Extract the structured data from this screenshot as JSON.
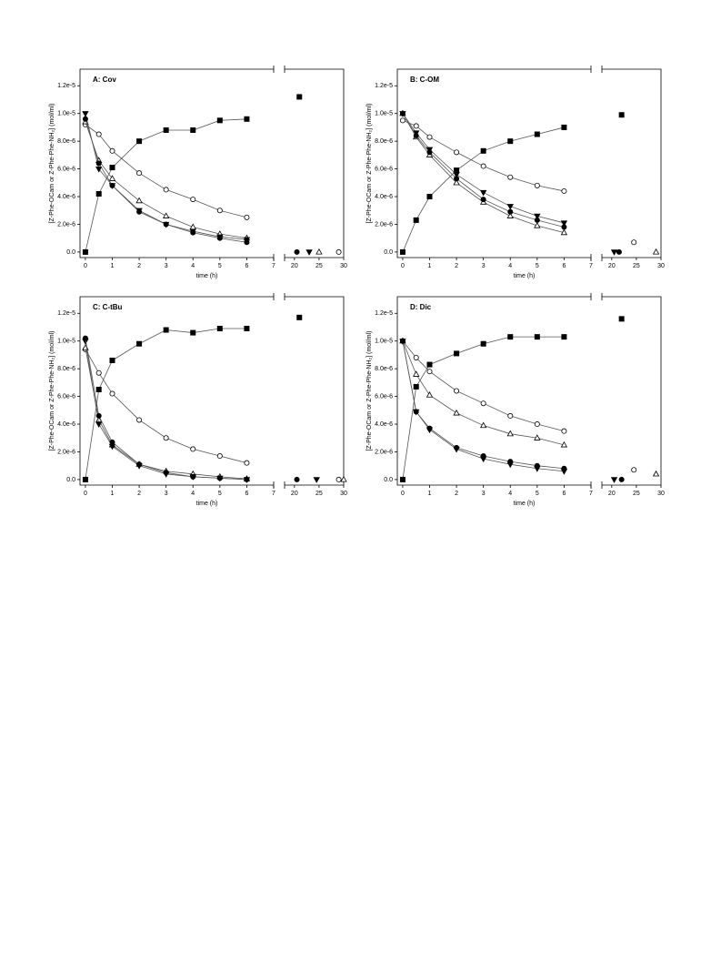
{
  "chart_data": [
    {
      "type": "line",
      "title": "A: Cov",
      "x_label": "time (h)",
      "y_label": "[Z-Phe-OCam or Z-Phe-Phe-NH₂] (mol/ml)",
      "ylim": [
        -4e-07,
        1.32e-05
      ],
      "yticks": [
        {
          "value": 0,
          "label": "0.0"
        },
        {
          "value": 2e-06,
          "label": "2.0e-6"
        },
        {
          "value": 4e-06,
          "label": "4.0e-6"
        },
        {
          "value": 6e-06,
          "label": "6.0e-6"
        },
        {
          "value": 8e-06,
          "label": "8.0e-6"
        },
        {
          "value": 1e-05,
          "label": "1.0e-5"
        },
        {
          "value": 1.2e-05,
          "label": "1.2e-5"
        }
      ],
      "x_segments": [
        {
          "xlim": [
            -0.2,
            7
          ],
          "xticks": [
            0,
            1,
            2,
            3,
            4,
            5,
            6,
            7
          ]
        },
        {
          "xlim": [
            18,
            30
          ],
          "xticks": [
            20,
            25,
            30
          ]
        }
      ],
      "series": [
        {
          "marker": "square",
          "filled": true,
          "color": "#000000",
          "x": [
            0,
            0.5,
            1,
            2,
            3,
            4,
            5,
            6,
            21
          ],
          "values": [
            0,
            4.2e-06,
            6.1e-06,
            8e-06,
            8.8e-06,
            8.8e-06,
            9.5e-06,
            9.6e-06,
            1.12e-05
          ]
        },
        {
          "marker": "circle",
          "filled": false,
          "color": "#000000",
          "x": [
            0,
            0.5,
            1,
            2,
            3,
            4,
            5,
            6,
            29
          ],
          "values": [
            9.2e-06,
            8.5e-06,
            7.3e-06,
            5.7e-06,
            4.5e-06,
            3.8e-06,
            3e-06,
            2.5e-06,
            0
          ]
        },
        {
          "marker": "triangle-up",
          "filled": false,
          "color": "#000000",
          "x": [
            0,
            0.5,
            1,
            2,
            3,
            4,
            5,
            6,
            25
          ],
          "values": [
            9.4e-06,
            6.6e-06,
            5.3e-06,
            3.7e-06,
            2.6e-06,
            1.8e-06,
            1.3e-06,
            1e-06,
            0
          ]
        },
        {
          "marker": "triangle-down",
          "filled": true,
          "color": "#000000",
          "x": [
            0,
            0.5,
            1,
            2,
            3,
            4,
            5,
            6,
            23
          ],
          "values": [
            1e-05,
            6e-06,
            4.8e-06,
            3e-06,
            2e-06,
            1.5e-06,
            1.1e-06,
            9e-07,
            0
          ]
        },
        {
          "marker": "circle",
          "filled": true,
          "color": "#000000",
          "x": [
            0,
            0.5,
            1,
            2,
            3,
            4,
            5,
            6,
            20.5
          ],
          "values": [
            9.6e-06,
            6.4e-06,
            4.8e-06,
            2.9e-06,
            2e-06,
            1.4e-06,
            1e-06,
            7e-07,
            0
          ]
        }
      ]
    },
    {
      "type": "line",
      "title": "B: C-OM",
      "x_label": "time (h)",
      "y_label": "[Z-Phe-OCam or Z-Phe-Phe-NH₂] (mol/ml)",
      "ylim": [
        -4e-07,
        1.32e-05
      ],
      "yticks": [
        {
          "value": 0,
          "label": "0.0"
        },
        {
          "value": 2e-06,
          "label": "2.0e-6"
        },
        {
          "value": 4e-06,
          "label": "4.0e-6"
        },
        {
          "value": 6e-06,
          "label": "6.0e-6"
        },
        {
          "value": 8e-06,
          "label": "8.0e-6"
        },
        {
          "value": 1e-05,
          "label": "1.0e-5"
        },
        {
          "value": 1.2e-05,
          "label": "1.2e-5"
        }
      ],
      "x_segments": [
        {
          "xlim": [
            -0.2,
            7
          ],
          "xticks": [
            0,
            1,
            2,
            3,
            4,
            5,
            6,
            7
          ]
        },
        {
          "xlim": [
            18,
            30
          ],
          "xticks": [
            20,
            25,
            30
          ]
        }
      ],
      "series": [
        {
          "marker": "square",
          "filled": true,
          "color": "#000000",
          "x": [
            0,
            0.5,
            1,
            2,
            3,
            4,
            5,
            6,
            22
          ],
          "values": [
            0,
            2.3e-06,
            4e-06,
            5.9e-06,
            7.3e-06,
            8e-06,
            8.5e-06,
            9e-06,
            9.9e-06
          ]
        },
        {
          "marker": "circle",
          "filled": false,
          "color": "#000000",
          "x": [
            0,
            0.5,
            1,
            2,
            3,
            4,
            5,
            6,
            24.5
          ],
          "values": [
            9.5e-06,
            9.1e-06,
            8.3e-06,
            7.2e-06,
            6.2e-06,
            5.4e-06,
            4.8e-06,
            4.4e-06,
            7e-07
          ]
        },
        {
          "marker": "triangle-up",
          "filled": false,
          "color": "#000000",
          "x": [
            0,
            0.5,
            1,
            2,
            3,
            4,
            5,
            6,
            29
          ],
          "values": [
            1e-05,
            8.3e-06,
            7e-06,
            5e-06,
            3.6e-06,
            2.6e-06,
            1.9e-06,
            1.4e-06,
            0
          ]
        },
        {
          "marker": "triangle-down",
          "filled": true,
          "color": "#000000",
          "x": [
            0,
            0.5,
            1,
            2,
            3,
            4,
            5,
            6,
            20.5
          ],
          "values": [
            1e-05,
            8.6e-06,
            7.4e-06,
            5.6e-06,
            4.3e-06,
            3.3e-06,
            2.6e-06,
            2.1e-06,
            0
          ]
        },
        {
          "marker": "circle",
          "filled": true,
          "color": "#000000",
          "x": [
            0,
            0.5,
            1,
            2,
            3,
            4,
            5,
            6,
            21.5
          ],
          "values": [
            1e-05,
            8.4e-06,
            7.2e-06,
            5.3e-06,
            3.8e-06,
            2.9e-06,
            2.3e-06,
            1.8e-06,
            0
          ]
        }
      ]
    },
    {
      "type": "line",
      "title": "C: C-tBu",
      "x_label": "time (h)",
      "y_label": "[Z-Phe-OCam or Z-Phe-Phe-NH₂] (mol/ml)",
      "ylim": [
        -4e-07,
        1.32e-05
      ],
      "yticks": [
        {
          "value": 0,
          "label": "0.0"
        },
        {
          "value": 2e-06,
          "label": "2.0e-6"
        },
        {
          "value": 4e-06,
          "label": "4.0e-6"
        },
        {
          "value": 6e-06,
          "label": "6.0e-6"
        },
        {
          "value": 8e-06,
          "label": "8.0e-6"
        },
        {
          "value": 1e-05,
          "label": "1.0e-5"
        },
        {
          "value": 1.2e-05,
          "label": "1.2e-5"
        }
      ],
      "x_segments": [
        {
          "xlim": [
            -0.2,
            7
          ],
          "xticks": [
            0,
            1,
            2,
            3,
            4,
            5,
            6,
            7
          ]
        },
        {
          "xlim": [
            18,
            30
          ],
          "xticks": [
            20,
            25,
            30
          ]
        }
      ],
      "series": [
        {
          "marker": "square",
          "filled": true,
          "color": "#000000",
          "x": [
            0,
            0.5,
            1,
            2,
            3,
            4,
            5,
            6,
            21
          ],
          "values": [
            0,
            6.5e-06,
            8.6e-06,
            9.8e-06,
            1.08e-05,
            1.06e-05,
            1.09e-05,
            1.09e-05,
            1.17e-05
          ]
        },
        {
          "marker": "circle",
          "filled": false,
          "color": "#000000",
          "x": [
            0,
            0.5,
            1,
            2,
            3,
            4,
            5,
            6,
            29
          ],
          "values": [
            9.4e-06,
            7.7e-06,
            6.2e-06,
            4.3e-06,
            3e-06,
            2.2e-06,
            1.7e-06,
            1.2e-06,
            0
          ]
        },
        {
          "marker": "triangle-up",
          "filled": false,
          "color": "#000000",
          "x": [
            0,
            0.5,
            1,
            2,
            3,
            4,
            5,
            6,
            30
          ],
          "values": [
            9.5e-06,
            4.3e-06,
            2.5e-06,
            1.1e-06,
            6e-07,
            4e-07,
            2e-07,
            5e-08,
            0
          ]
        },
        {
          "marker": "triangle-down",
          "filled": true,
          "color": "#000000",
          "x": [
            0,
            0.5,
            1,
            2,
            3,
            4,
            5,
            6,
            24.5
          ],
          "values": [
            1e-05,
            4e-06,
            2.4e-06,
            1e-06,
            4e-07,
            2e-07,
            1e-07,
            0,
            0
          ]
        },
        {
          "marker": "circle",
          "filled": true,
          "color": "#000000",
          "x": [
            0,
            0.5,
            1,
            2,
            3,
            4,
            5,
            6,
            20.5
          ],
          "values": [
            1.02e-05,
            4.6e-06,
            2.7e-06,
            1.1e-06,
            5e-07,
            2e-07,
            1e-07,
            0,
            0
          ]
        }
      ]
    },
    {
      "type": "line",
      "title": "D: Dic",
      "x_label": "time (h)",
      "y_label": "[Z-Phe-OCam or Z-Phe-Phe-NH₂] (mol/ml)",
      "ylim": [
        -4e-07,
        1.32e-05
      ],
      "yticks": [
        {
          "value": 0,
          "label": "0.0"
        },
        {
          "value": 2e-06,
          "label": "2.0e-6"
        },
        {
          "value": 4e-06,
          "label": "4.0e-6"
        },
        {
          "value": 6e-06,
          "label": "6.0e-6"
        },
        {
          "value": 8e-06,
          "label": "8.0e-6"
        },
        {
          "value": 1e-05,
          "label": "1.0e-5"
        },
        {
          "value": 1.2e-05,
          "label": "1.2e-5"
        }
      ],
      "x_segments": [
        {
          "xlim": [
            -0.2,
            7
          ],
          "xticks": [
            0,
            1,
            2,
            3,
            4,
            5,
            6,
            7
          ]
        },
        {
          "xlim": [
            18,
            30
          ],
          "xticks": [
            20,
            25,
            30
          ]
        }
      ],
      "series": [
        {
          "marker": "square",
          "filled": true,
          "color": "#000000",
          "x": [
            0,
            0.5,
            1,
            2,
            3,
            4,
            5,
            6,
            22
          ],
          "values": [
            0,
            6.7e-06,
            8.3e-06,
            9.1e-06,
            9.8e-06,
            1.03e-05,
            1.03e-05,
            1.03e-05,
            1.16e-05
          ]
        },
        {
          "marker": "circle",
          "filled": false,
          "color": "#000000",
          "x": [
            0,
            0.5,
            1,
            2,
            3,
            4,
            5,
            6,
            24.5
          ],
          "values": [
            1e-05,
            8.8e-06,
            7.8e-06,
            6.4e-06,
            5.5e-06,
            4.6e-06,
            4e-06,
            3.5e-06,
            7e-07
          ]
        },
        {
          "marker": "triangle-up",
          "filled": false,
          "color": "#000000",
          "x": [
            0,
            0.5,
            1,
            2,
            3,
            4,
            5,
            6,
            29
          ],
          "values": [
            1e-05,
            7.6e-06,
            6.1e-06,
            4.8e-06,
            3.9e-06,
            3.3e-06,
            3e-06,
            2.5e-06,
            4e-07
          ]
        },
        {
          "marker": "triangle-down",
          "filled": true,
          "color": "#000000",
          "x": [
            0,
            0.5,
            1,
            2,
            3,
            4,
            5,
            6,
            20.5
          ],
          "values": [
            1e-05,
            4.9e-06,
            3.6e-06,
            2.2e-06,
            1.5e-06,
            1.1e-06,
            8e-07,
            6e-07,
            0
          ]
        },
        {
          "marker": "circle",
          "filled": true,
          "color": "#000000",
          "x": [
            0,
            0.5,
            1,
            2,
            3,
            4,
            5,
            6,
            22
          ],
          "values": [
            1e-05,
            4.9e-06,
            3.7e-06,
            2.3e-06,
            1.7e-06,
            1.3e-06,
            1e-06,
            8e-07,
            0
          ]
        }
      ]
    }
  ]
}
